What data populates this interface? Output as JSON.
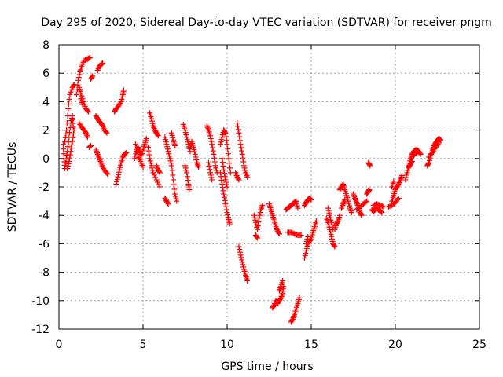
{
  "chart_data": {
    "type": "scatter",
    "title": "Day 295 of 2020, Sidereal Day-to-day VTEC variation (SDTVAR) for receiver pngm",
    "xlabel": "GPS time / hours",
    "ylabel": "SDTVAR / TECUs",
    "xlim": [
      0,
      25
    ],
    "ylim": [
      -12,
      8
    ],
    "xticks": [
      0,
      5,
      10,
      15,
      20,
      25
    ],
    "yticks": [
      -12,
      -10,
      -8,
      -6,
      -4,
      -2,
      0,
      2,
      4,
      6,
      8
    ],
    "grid": true,
    "marker": "plus",
    "color": "#ff0000",
    "segments": [
      [
        [
          0.25,
          1.0
        ],
        [
          0.3,
          0.0
        ],
        [
          0.35,
          -0.7
        ]
      ],
      [
        [
          0.35,
          1.2
        ],
        [
          0.45,
          2.0
        ],
        [
          0.55,
          3.5
        ],
        [
          0.65,
          4.5
        ],
        [
          0.8,
          5.0
        ],
        [
          0.9,
          5.2
        ]
      ],
      [
        [
          0.4,
          -0.3
        ],
        [
          0.5,
          0.5
        ],
        [
          0.6,
          1.5
        ],
        [
          0.7,
          2.5
        ],
        [
          0.8,
          3.0
        ],
        [
          0.85,
          2.2
        ]
      ],
      [
        [
          0.5,
          -0.7
        ],
        [
          0.6,
          -0.2
        ],
        [
          0.7,
          0.5
        ],
        [
          0.8,
          1.2
        ],
        [
          0.9,
          2.0
        ]
      ],
      [
        [
          1.05,
          4.5
        ],
        [
          1.15,
          5.5
        ],
        [
          1.25,
          6.1
        ],
        [
          1.35,
          6.5
        ],
        [
          1.5,
          6.9
        ],
        [
          1.7,
          7.0
        ],
        [
          1.85,
          7.1
        ]
      ],
      [
        [
          1.2,
          5.0
        ],
        [
          1.3,
          4.6
        ],
        [
          1.45,
          4.0
        ],
        [
          1.6,
          3.5
        ],
        [
          1.75,
          3.3
        ]
      ],
      [
        [
          1.2,
          2.5
        ],
        [
          1.35,
          2.2
        ],
        [
          1.5,
          2.0
        ],
        [
          1.6,
          1.8
        ],
        [
          1.7,
          1.5
        ]
      ],
      [
        [
          1.3,
          4.2
        ],
        [
          1.4,
          3.8
        ]
      ],
      [
        [
          1.8,
          0.8
        ],
        [
          1.9,
          0.9
        ]
      ],
      [
        [
          1.9,
          5.6
        ],
        [
          2.0,
          5.8
        ]
      ],
      [
        [
          2.3,
          6.2
        ],
        [
          2.4,
          6.5
        ],
        [
          2.5,
          6.6
        ],
        [
          2.6,
          6.7
        ]
      ],
      [
        [
          2.2,
          3.0
        ],
        [
          2.3,
          2.8
        ],
        [
          2.4,
          2.6
        ],
        [
          2.5,
          2.5
        ],
        [
          2.6,
          2.3
        ],
        [
          2.7,
          2.0
        ],
        [
          2.85,
          1.8
        ]
      ],
      [
        [
          2.2,
          0.6
        ],
        [
          2.3,
          0.3
        ],
        [
          2.4,
          0.0
        ],
        [
          2.5,
          -0.3
        ],
        [
          2.6,
          -0.6
        ],
        [
          2.75,
          -0.9
        ],
        [
          2.9,
          -1.1
        ]
      ],
      [
        [
          3.3,
          3.3
        ],
        [
          3.4,
          3.5
        ],
        [
          3.55,
          3.7
        ],
        [
          3.7,
          4.0
        ],
        [
          3.8,
          4.5
        ],
        [
          3.85,
          4.8
        ]
      ],
      [
        [
          3.4,
          -1.8
        ],
        [
          3.5,
          -1.3
        ],
        [
          3.6,
          -0.8
        ],
        [
          3.7,
          -0.3
        ],
        [
          3.8,
          0.1
        ],
        [
          3.9,
          0.3
        ],
        [
          4.0,
          0.4
        ]
      ],
      [
        [
          4.5,
          0.0
        ],
        [
          4.6,
          0.5
        ],
        [
          4.7,
          0.8
        ],
        [
          4.8,
          0.5
        ],
        [
          4.9,
          0.2
        ],
        [
          5.0,
          0.6
        ],
        [
          5.1,
          1.0
        ],
        [
          5.2,
          1.4
        ]
      ],
      [
        [
          4.55,
          1.0
        ],
        [
          4.7,
          0.2
        ],
        [
          4.85,
          -0.2
        ],
        [
          5.0,
          -0.6
        ]
      ],
      [
        [
          5.4,
          3.2
        ],
        [
          5.5,
          2.8
        ],
        [
          5.6,
          2.3
        ],
        [
          5.7,
          2.0
        ],
        [
          5.8,
          1.8
        ],
        [
          5.9,
          1.6
        ]
      ],
      [
        [
          5.3,
          0.8
        ],
        [
          5.4,
          0.0
        ],
        [
          5.5,
          -0.5
        ],
        [
          5.6,
          -1.0
        ],
        [
          5.8,
          -1.5
        ],
        [
          6.0,
          -2.0
        ]
      ],
      [
        [
          5.8,
          -0.5
        ],
        [
          5.9,
          -0.8
        ],
        [
          6.0,
          -1.0
        ]
      ],
      [
        [
          6.3,
          1.5
        ],
        [
          6.4,
          1.0
        ],
        [
          6.5,
          0.5
        ],
        [
          6.6,
          0.0
        ],
        [
          6.7,
          -0.5
        ],
        [
          6.8,
          -1.5
        ],
        [
          6.9,
          -2.5
        ],
        [
          7.0,
          -3.0
        ]
      ],
      [
        [
          6.3,
          -2.8
        ],
        [
          6.4,
          -3.0
        ],
        [
          6.5,
          -3.2
        ]
      ],
      [
        [
          6.7,
          1.8
        ],
        [
          6.8,
          1.3
        ],
        [
          6.9,
          0.9
        ]
      ],
      [
        [
          7.4,
          2.4
        ],
        [
          7.5,
          2.0
        ],
        [
          7.6,
          1.5
        ],
        [
          7.7,
          1.0
        ],
        [
          7.8,
          0.5
        ]
      ],
      [
        [
          7.5,
          -0.5
        ],
        [
          7.6,
          -1.0
        ],
        [
          7.7,
          -1.8
        ],
        [
          7.75,
          -2.2
        ]
      ],
      [
        [
          7.8,
          0.8
        ],
        [
          7.9,
          1.2
        ],
        [
          8.0,
          0.8
        ],
        [
          8.1,
          0.3
        ],
        [
          8.2,
          -0.3
        ],
        [
          8.3,
          -0.6
        ]
      ],
      [
        [
          8.8,
          2.3
        ],
        [
          8.9,
          2.0
        ],
        [
          9.0,
          1.6
        ],
        [
          9.1,
          1.0
        ],
        [
          9.2,
          0.3
        ],
        [
          9.3,
          -0.5
        ],
        [
          9.4,
          -1.0
        ]
      ],
      [
        [
          8.9,
          -0.3
        ],
        [
          9.0,
          -1.0
        ],
        [
          9.1,
          -1.5
        ]
      ],
      [
        [
          9.6,
          1.0
        ],
        [
          9.7,
          1.5
        ],
        [
          9.8,
          2.0
        ],
        [
          9.9,
          1.8
        ],
        [
          10.0,
          1.0
        ],
        [
          10.1,
          0.0
        ],
        [
          10.2,
          -1.0
        ]
      ],
      [
        [
          9.6,
          -1.0
        ],
        [
          9.7,
          -1.8
        ],
        [
          9.8,
          -2.5
        ],
        [
          9.9,
          -3.2
        ],
        [
          10.0,
          -3.8
        ],
        [
          10.1,
          -4.3
        ],
        [
          10.15,
          -4.6
        ]
      ],
      [
        [
          9.7,
          0.0
        ],
        [
          9.8,
          -0.8
        ],
        [
          9.9,
          -1.5
        ],
        [
          10.0,
          -2.0
        ]
      ],
      [
        [
          10.6,
          2.5
        ],
        [
          10.7,
          1.8
        ],
        [
          10.8,
          1.0
        ],
        [
          10.9,
          0.3
        ],
        [
          11.0,
          -0.5
        ],
        [
          11.1,
          -1.0
        ],
        [
          11.2,
          -1.3
        ]
      ],
      [
        [
          10.5,
          -1.0
        ],
        [
          10.6,
          -1.3
        ],
        [
          10.7,
          -1.5
        ]
      ],
      [
        [
          10.7,
          -6.2
        ],
        [
          10.8,
          -6.8
        ],
        [
          10.9,
          -7.3
        ],
        [
          11.0,
          -7.8
        ],
        [
          11.1,
          -8.2
        ],
        [
          11.2,
          -8.6
        ]
      ],
      [
        [
          11.6,
          -4.0
        ],
        [
          11.7,
          -4.5
        ],
        [
          11.8,
          -5.0
        ],
        [
          11.9,
          -4.2
        ],
        [
          12.0,
          -3.6
        ],
        [
          12.1,
          -3.3
        ]
      ],
      [
        [
          11.7,
          -5.4
        ],
        [
          11.8,
          -5.6
        ]
      ],
      [
        [
          12.5,
          -3.2
        ],
        [
          12.6,
          -3.6
        ],
        [
          12.7,
          -4.0
        ],
        [
          12.8,
          -4.4
        ],
        [
          12.9,
          -4.8
        ],
        [
          13.0,
          -5.1
        ],
        [
          13.1,
          -5.3
        ]
      ],
      [
        [
          12.7,
          -10.5
        ],
        [
          12.8,
          -10.3
        ],
        [
          12.9,
          -10.0
        ],
        [
          13.0,
          -10.2
        ],
        [
          13.1,
          -10.0
        ],
        [
          13.2,
          -9.8
        ],
        [
          13.3,
          -9.5
        ],
        [
          13.35,
          -9.0
        ]
      ],
      [
        [
          13.1,
          -9.3
        ],
        [
          13.2,
          -9.0
        ],
        [
          13.3,
          -8.6
        ]
      ],
      [
        [
          13.5,
          -3.6
        ],
        [
          13.6,
          -3.5
        ],
        [
          13.7,
          -3.4
        ],
        [
          13.8,
          -3.3
        ],
        [
          13.9,
          -3.2
        ],
        [
          14.0,
          -3.1
        ],
        [
          14.1,
          -3.0
        ],
        [
          14.2,
          -3.5
        ]
      ],
      [
        [
          13.6,
          -5.2
        ],
        [
          13.8,
          -5.2
        ],
        [
          14.0,
          -5.3
        ],
        [
          14.2,
          -5.4
        ],
        [
          14.4,
          -5.4
        ]
      ],
      [
        [
          13.8,
          -11.5
        ],
        [
          13.9,
          -11.3
        ],
        [
          14.0,
          -11.0
        ],
        [
          14.1,
          -10.6
        ],
        [
          14.2,
          -10.2
        ],
        [
          14.3,
          -9.8
        ]
      ],
      [
        [
          14.6,
          -3.3
        ],
        [
          14.7,
          -3.1
        ],
        [
          14.8,
          -2.9
        ],
        [
          14.9,
          -2.8
        ],
        [
          15.0,
          -2.9
        ]
      ],
      [
        [
          14.6,
          -7.0
        ],
        [
          14.7,
          -6.5
        ],
        [
          14.8,
          -6.0
        ],
        [
          14.9,
          -5.8
        ],
        [
          15.0,
          -5.7
        ],
        [
          15.1,
          -5.2
        ],
        [
          15.2,
          -4.8
        ],
        [
          15.3,
          -4.4
        ]
      ],
      [
        [
          14.7,
          -6.0
        ],
        [
          14.8,
          -5.5
        ]
      ],
      [
        [
          15.9,
          -4.2
        ],
        [
          16.0,
          -4.5
        ],
        [
          16.1,
          -5.0
        ],
        [
          16.2,
          -5.5
        ],
        [
          16.3,
          -6.0
        ],
        [
          16.4,
          -6.2
        ]
      ],
      [
        [
          16.0,
          -3.5
        ],
        [
          16.1,
          -4.0
        ],
        [
          16.2,
          -4.5
        ],
        [
          16.3,
          -5.0
        ]
      ],
      [
        [
          16.4,
          -5.0
        ],
        [
          16.5,
          -4.6
        ],
        [
          16.6,
          -4.4
        ],
        [
          16.7,
          -4.0
        ]
      ],
      [
        [
          16.7,
          -2.2
        ],
        [
          16.8,
          -2.0
        ],
        [
          16.9,
          -1.8
        ],
        [
          17.0,
          -2.2
        ],
        [
          17.1,
          -2.6
        ],
        [
          17.2,
          -3.0
        ],
        [
          17.3,
          -3.5
        ],
        [
          17.4,
          -3.8
        ]
      ],
      [
        [
          16.8,
          -3.5
        ],
        [
          16.9,
          -3.2
        ],
        [
          17.0,
          -2.9
        ]
      ],
      [
        [
          17.5,
          -2.5
        ],
        [
          17.6,
          -2.8
        ],
        [
          17.7,
          -3.1
        ],
        [
          17.8,
          -3.4
        ],
        [
          17.9,
          -3.8
        ],
        [
          18.0,
          -4.0
        ]
      ],
      [
        [
          17.7,
          -3.6
        ],
        [
          17.9,
          -3.4
        ],
        [
          18.1,
          -3.2
        ],
        [
          18.3,
          -3.0
        ]
      ],
      [
        [
          18.3,
          -2.5
        ],
        [
          18.4,
          -2.3
        ],
        [
          18.45,
          -2.2
        ]
      ],
      [
        [
          18.4,
          -0.3
        ],
        [
          18.5,
          -0.5
        ]
      ],
      [
        [
          18.6,
          -3.6
        ],
        [
          18.7,
          -3.7
        ],
        [
          18.8,
          -3.6
        ],
        [
          18.9,
          -3.5
        ],
        [
          19.0,
          -3.6
        ],
        [
          19.1,
          -3.7
        ],
        [
          19.2,
          -3.8
        ]
      ],
      [
        [
          18.7,
          -3.3
        ],
        [
          18.9,
          -3.2
        ],
        [
          19.1,
          -3.3
        ],
        [
          19.3,
          -3.4
        ]
      ],
      [
        [
          19.8,
          -3.0
        ],
        [
          19.9,
          -2.6
        ],
        [
          20.0,
          -2.2
        ],
        [
          20.1,
          -2.0
        ],
        [
          20.2,
          -1.8
        ],
        [
          20.3,
          -1.5
        ],
        [
          20.4,
          -1.2
        ]
      ],
      [
        [
          19.6,
          -3.4
        ],
        [
          19.8,
          -3.3
        ],
        [
          20.0,
          -3.1
        ],
        [
          20.2,
          -2.8
        ]
      ],
      [
        [
          19.8,
          -2.0
        ],
        [
          19.9,
          -1.6
        ]
      ],
      [
        [
          20.6,
          -1.5
        ],
        [
          20.7,
          -1.0
        ],
        [
          20.8,
          -0.5
        ],
        [
          20.9,
          0.0
        ],
        [
          21.0,
          0.3
        ],
        [
          21.1,
          0.5
        ],
        [
          21.2,
          0.6
        ],
        [
          21.3,
          0.6
        ],
        [
          21.4,
          0.5
        ],
        [
          21.5,
          0.3
        ]
      ],
      [
        [
          20.8,
          -0.6
        ],
        [
          20.9,
          -0.4
        ],
        [
          21.0,
          -0.2
        ]
      ],
      [
        [
          21.1,
          0.2
        ],
        [
          21.2,
          0.4
        ],
        [
          21.3,
          0.5
        ]
      ],
      [
        [
          21.9,
          -0.5
        ],
        [
          22.0,
          -0.3
        ],
        [
          22.1,
          0.2
        ],
        [
          22.2,
          0.6
        ],
        [
          22.3,
          0.9
        ],
        [
          22.4,
          1.1
        ],
        [
          22.5,
          1.3
        ],
        [
          22.6,
          1.4
        ],
        [
          22.7,
          1.3
        ]
      ],
      [
        [
          22.0,
          0.1
        ],
        [
          22.2,
          0.4
        ],
        [
          22.4,
          0.8
        ],
        [
          22.6,
          1.1
        ]
      ]
    ]
  }
}
